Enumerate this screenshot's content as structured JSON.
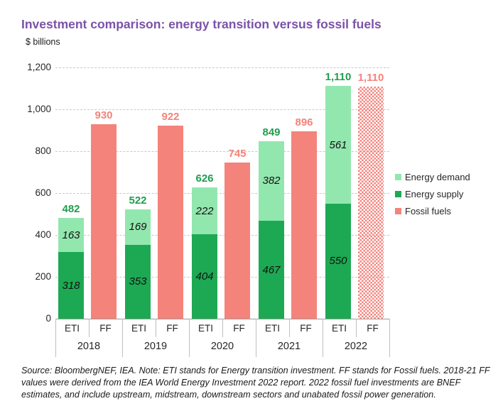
{
  "header": {
    "title": "Investment comparison: energy transition versus fossil fuels",
    "units_label": "$ billions"
  },
  "chart_data": {
    "type": "bar",
    "title": "Investment comparison: energy transition versus fossil fuels",
    "ylabel": "$ billions",
    "ylim": [
      0,
      1200
    ],
    "ytick_step": 200,
    "grid": "horizontal-dashed",
    "legend_position": "right",
    "categories": [
      "2018",
      "2019",
      "2020",
      "2021",
      "2022"
    ],
    "group_bar_labels": [
      "ETI",
      "FF"
    ],
    "series": [
      {
        "name": "Energy demand",
        "stack": "ETI",
        "color": "#92e7af",
        "values": [
          163,
          169,
          222,
          382,
          561
        ]
      },
      {
        "name": "Energy supply",
        "stack": "ETI",
        "color": "#1da953",
        "values": [
          318,
          353,
          404,
          467,
          550
        ]
      },
      {
        "name": "Fossil fuels",
        "stack": "FF",
        "color": "#f4837b",
        "values": [
          930,
          922,
          745,
          896,
          1110
        ]
      }
    ],
    "eti_totals": [
      482,
      522,
      626,
      849,
      1110
    ],
    "ff_totals": [
      930,
      922,
      745,
      896,
      1110
    ],
    "pattern_fill": {
      "category": "2022",
      "stack": "FF",
      "style": "checker"
    },
    "colors": {
      "eti_total_label": "#1f9e4e",
      "ff_total_label": "#f4837b",
      "title": "#7b52a8",
      "gridline": "#c9c9c9"
    }
  },
  "legend": {
    "items": [
      {
        "label": "Energy demand",
        "color": "#92e7af"
      },
      {
        "label": "Energy supply",
        "color": "#1da953"
      },
      {
        "label": "Fossil fuels",
        "color": "#f4837b"
      }
    ]
  },
  "footer": {
    "note": "Source: BloombergNEF, IEA. Note: ETI stands for Energy transition investment. FF stands for Fossil fuels. 2018-21 FF values were derived from the IEA World Energy Investment 2022 report. 2022 fossil fuel investments are BNEF estimates, and include upstream, midstream, downstream sectors and unabated fossil power generation."
  }
}
